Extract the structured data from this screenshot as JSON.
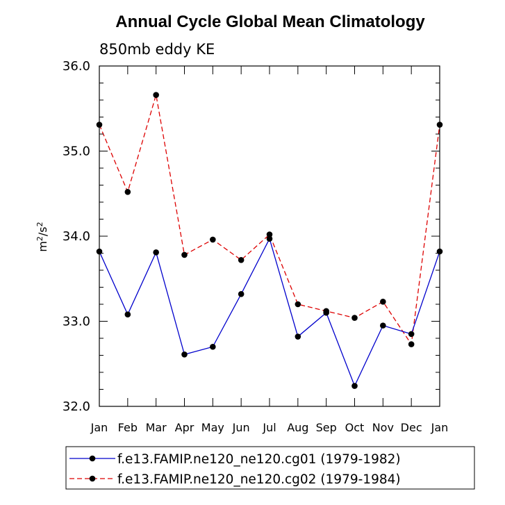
{
  "chart_data": {
    "type": "line",
    "title": "Annual Cycle Global Mean Climatology",
    "subtitle": "850mb eddy KE",
    "ylabel_base": "m",
    "ylabel_exp1": "2",
    "ylabel_mid": "/s",
    "ylabel_exp2": "2",
    "xlabel": "",
    "categories": [
      "Jan",
      "Feb",
      "Mar",
      "Apr",
      "May",
      "Jun",
      "Jul",
      "Aug",
      "Sep",
      "Oct",
      "Nov",
      "Dec",
      "Jan"
    ],
    "ylim": [
      32.0,
      36.0
    ],
    "yticks": [
      "32.0",
      "33.0",
      "34.0",
      "35.0",
      "36.0"
    ],
    "ytick_values": [
      32.0,
      33.0,
      34.0,
      35.0,
      36.0
    ],
    "grid": false,
    "legend_position": "bottom",
    "series": [
      {
        "name": "f.e13.FAMIP.ne120_ne120.cg01 (1979-1982)",
        "color": "#0000cc",
        "line_style": "solid",
        "marker": "circle",
        "values": [
          33.82,
          33.08,
          33.81,
          32.61,
          32.7,
          33.32,
          33.97,
          32.82,
          33.1,
          32.24,
          32.95,
          32.85,
          33.82
        ]
      },
      {
        "name": "f.e13.FAMIP.ne120_ne120.cg02 (1979-1984)",
        "color": "#dd0000",
        "line_style": "dashed",
        "marker": "circle",
        "values": [
          35.31,
          34.52,
          35.66,
          33.78,
          33.96,
          33.72,
          34.02,
          33.2,
          33.12,
          33.04,
          33.23,
          32.73,
          35.31
        ]
      }
    ]
  }
}
